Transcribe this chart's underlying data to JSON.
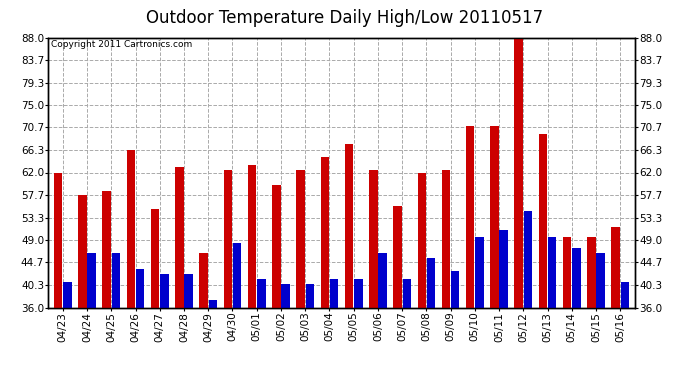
{
  "title": "Outdoor Temperature Daily High/Low 20110517",
  "copyright": "Copyright 2011 Cartronics.com",
  "dates": [
    "04/23",
    "04/24",
    "04/25",
    "04/26",
    "04/27",
    "04/28",
    "04/29",
    "04/30",
    "05/01",
    "05/02",
    "05/03",
    "05/04",
    "05/05",
    "05/06",
    "05/07",
    "05/08",
    "05/09",
    "05/10",
    "05/11",
    "05/12",
    "05/13",
    "05/14",
    "05/15",
    "05/16"
  ],
  "highs": [
    62.0,
    57.7,
    58.5,
    66.3,
    55.0,
    63.0,
    46.5,
    62.5,
    63.5,
    59.5,
    62.5,
    65.0,
    67.5,
    62.5,
    55.5,
    62.0,
    62.5,
    71.0,
    71.0,
    88.0,
    69.5,
    49.5,
    49.5,
    51.5
  ],
  "lows": [
    41.0,
    46.5,
    46.5,
    43.5,
    42.5,
    42.5,
    37.5,
    48.5,
    41.5,
    40.5,
    40.5,
    41.5,
    41.5,
    46.5,
    41.5,
    45.5,
    43.0,
    49.5,
    51.0,
    54.5,
    49.5,
    47.5,
    46.5,
    41.0
  ],
  "high_color": "#cc0000",
  "low_color": "#0000cc",
  "bg_color": "#ffffff",
  "grid_color": "#aaaaaa",
  "border_color": "#000000",
  "ymin": 36.0,
  "ymax": 88.0,
  "yticks": [
    36.0,
    40.3,
    44.7,
    49.0,
    53.3,
    57.7,
    62.0,
    66.3,
    70.7,
    75.0,
    79.3,
    83.7,
    88.0
  ],
  "title_fontsize": 12,
  "tick_fontsize": 7.5,
  "copyright_fontsize": 6.5,
  "bar_width": 0.35,
  "bar_gap": 0.03
}
